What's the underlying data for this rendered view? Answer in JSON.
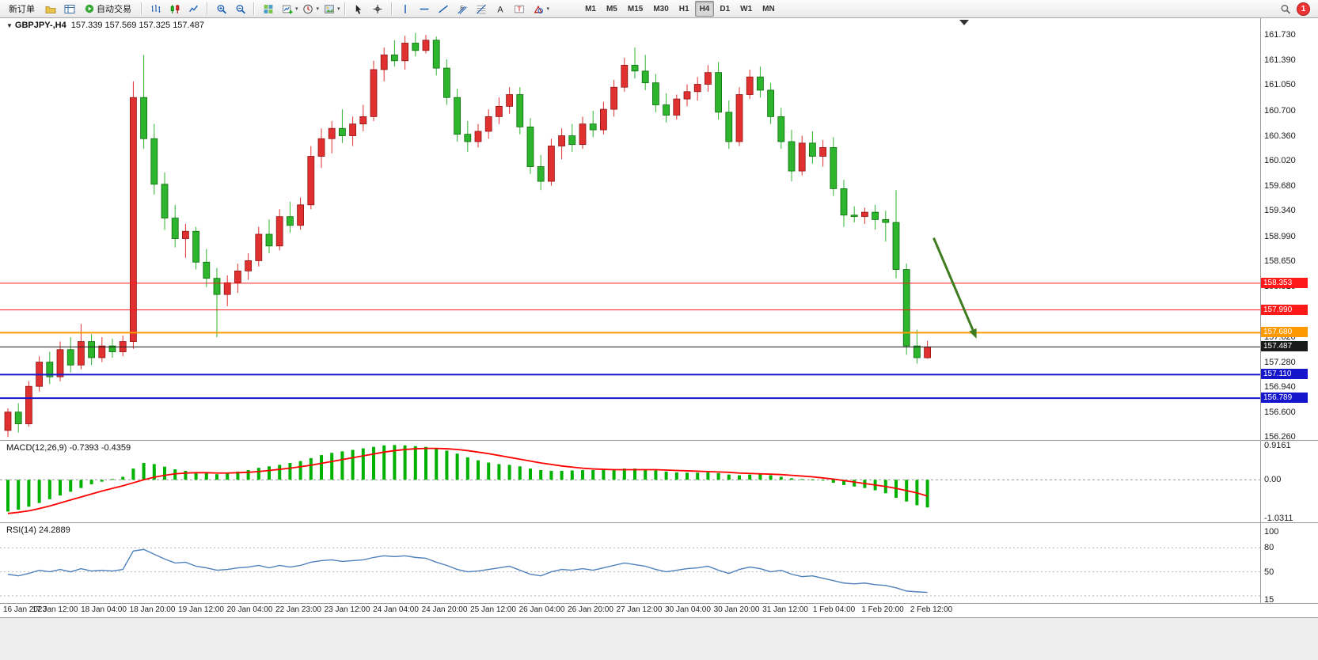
{
  "toolbar": {
    "new_order_label": "新订单",
    "autotrade_label": "自动交易",
    "badge_count": "1",
    "icons": [
      "profiles-icon",
      "market-watch-icon",
      "autotrade-play-icon",
      "bar-chart-icon",
      "candlestick-icon",
      "line-chart-icon",
      "zoom-in-icon",
      "zoom-out-icon",
      "tile-windows-icon",
      "new-chart-icon",
      "period-icon",
      "template-icon",
      "cursor-icon",
      "crosshair-icon",
      "vertical-line-icon",
      "horizontal-line-icon",
      "trendline-icon",
      "equidistant-channel-icon",
      "fibonacci-icon",
      "text-tool-icon",
      "label-tool-icon",
      "shapes-icon",
      "search-icon"
    ],
    "timeframes": [
      "M1",
      "M5",
      "M15",
      "M30",
      "H1",
      "H4",
      "D1",
      "W1",
      "MN"
    ],
    "active_timeframe": "H4"
  },
  "chart": {
    "symbol": "GBPJPY-,H4",
    "ohlc_text": "157.339 157.569 157.325 157.487"
  },
  "indicators": {
    "macd_label": "MACD(12,26,9)",
    "macd_values": "-0.7393 -0.4359",
    "rsi_label": "RSI(14)",
    "rsi_value": "24.2889"
  },
  "chart_data": [
    {
      "type": "candlestick",
      "symbol": "GBPJPY-",
      "timeframe": "H4",
      "current": {
        "open": 157.339,
        "high": 157.569,
        "low": 157.325,
        "close": 157.487
      },
      "ylim": [
        156.22,
        161.97
      ],
      "y_ticks": [
        "161.730",
        "161.390",
        "161.050",
        "160.700",
        "160.360",
        "160.020",
        "159.680",
        "159.340",
        "158.990",
        "158.650",
        "158.310",
        "157.970",
        "157.620",
        "157.280",
        "156.940",
        "156.600",
        "156.260"
      ],
      "x_labels": [
        "16 Jan 2023",
        "17 Jan 12:00",
        "18 Jan 04:00",
        "18 Jan 20:00",
        "19 Jan 12:00",
        "20 Jan 04:00",
        "22 Jan 23:00",
        "23 Jan 12:00",
        "24 Jan 04:00",
        "24 Jan 20:00",
        "25 Jan 12:00",
        "26 Jan 04:00",
        "26 Jan 20:00",
        "27 Jan 12:00",
        "30 Jan 04:00",
        "30 Jan 20:00",
        "31 Jan 12:00",
        "1 Feb 04:00",
        "1 Feb 20:00",
        "2 Feb 12:00"
      ],
      "colors": {
        "up": "#e03030",
        "down": "#2db52d",
        "up_border": "#8f1414",
        "down_border": "#0d6e0d",
        "bg": "#ffffff"
      },
      "candles": [
        [
          156.35,
          156.65,
          156.26,
          156.6
        ],
        [
          156.6,
          156.72,
          156.32,
          156.44
        ],
        [
          156.44,
          157.02,
          156.4,
          156.95
        ],
        [
          156.95,
          157.36,
          156.88,
          157.28
        ],
        [
          157.28,
          157.42,
          156.98,
          157.08
        ],
        [
          157.08,
          157.56,
          157.02,
          157.45
        ],
        [
          157.45,
          157.62,
          157.14,
          157.24
        ],
        [
          157.24,
          157.8,
          157.18,
          157.56
        ],
        [
          157.56,
          157.66,
          157.24,
          157.34
        ],
        [
          157.34,
          157.62,
          157.28,
          157.5
        ],
        [
          157.5,
          157.6,
          157.34,
          157.42
        ],
        [
          157.42,
          157.64,
          157.36,
          157.56
        ],
        [
          157.56,
          161.1,
          157.46,
          160.88
        ],
        [
          160.88,
          161.46,
          160.18,
          160.32
        ],
        [
          160.32,
          160.52,
          159.56,
          159.7
        ],
        [
          159.7,
          159.86,
          159.08,
          159.24
        ],
        [
          159.24,
          159.42,
          158.84,
          158.96
        ],
        [
          158.96,
          159.16,
          158.7,
          159.06
        ],
        [
          159.06,
          159.12,
          158.54,
          158.64
        ],
        [
          158.64,
          158.82,
          158.3,
          158.42
        ],
        [
          158.42,
          158.56,
          157.62,
          158.2
        ],
        [
          158.2,
          158.46,
          158.04,
          158.36
        ],
        [
          158.36,
          158.62,
          158.22,
          158.52
        ],
        [
          158.52,
          158.76,
          158.4,
          158.66
        ],
        [
          158.66,
          159.12,
          158.58,
          159.02
        ],
        [
          159.02,
          159.22,
          158.76,
          158.86
        ],
        [
          158.86,
          159.36,
          158.8,
          159.26
        ],
        [
          159.26,
          159.46,
          159.04,
          159.14
        ],
        [
          159.14,
          159.52,
          159.08,
          159.42
        ],
        [
          159.42,
          160.22,
          159.36,
          160.08
        ],
        [
          160.08,
          160.46,
          159.92,
          160.32
        ],
        [
          160.32,
          160.56,
          160.12,
          160.46
        ],
        [
          160.46,
          160.72,
          160.26,
          160.36
        ],
        [
          160.36,
          160.62,
          160.22,
          160.52
        ],
        [
          160.52,
          160.78,
          160.42,
          160.62
        ],
        [
          160.62,
          161.38,
          160.56,
          161.26
        ],
        [
          161.26,
          161.56,
          161.1,
          161.46
        ],
        [
          161.46,
          161.66,
          161.3,
          161.38
        ],
        [
          161.38,
          161.72,
          161.26,
          161.62
        ],
        [
          161.62,
          161.76,
          161.44,
          161.52
        ],
        [
          161.52,
          161.73,
          161.48,
          161.66
        ],
        [
          161.66,
          161.71,
          161.18,
          161.28
        ],
        [
          161.28,
          161.4,
          160.78,
          160.88
        ],
        [
          160.88,
          161.0,
          160.28,
          160.38
        ],
        [
          160.38,
          160.56,
          160.14,
          160.28
        ],
        [
          160.28,
          160.52,
          160.2,
          160.42
        ],
        [
          160.42,
          160.72,
          160.32,
          160.62
        ],
        [
          160.62,
          160.88,
          160.52,
          160.76
        ],
        [
          160.76,
          161.02,
          160.66,
          160.92
        ],
        [
          160.92,
          161.02,
          160.38,
          160.48
        ],
        [
          160.48,
          160.6,
          159.84,
          159.94
        ],
        [
          159.94,
          160.1,
          159.62,
          159.74
        ],
        [
          159.74,
          160.32,
          159.68,
          160.22
        ],
        [
          160.22,
          160.46,
          160.04,
          160.36
        ],
        [
          160.36,
          160.52,
          160.14,
          160.24
        ],
        [
          160.24,
          160.62,
          160.18,
          160.52
        ],
        [
          160.52,
          160.7,
          160.34,
          160.44
        ],
        [
          160.44,
          160.82,
          160.38,
          160.72
        ],
        [
          160.72,
          161.12,
          160.62,
          161.02
        ],
        [
          161.02,
          161.42,
          160.96,
          161.32
        ],
        [
          161.32,
          161.56,
          161.14,
          161.24
        ],
        [
          161.24,
          161.46,
          160.98,
          161.08
        ],
        [
          161.08,
          161.2,
          160.68,
          160.78
        ],
        [
          160.78,
          160.94,
          160.54,
          160.64
        ],
        [
          160.64,
          160.92,
          160.58,
          160.86
        ],
        [
          160.86,
          161.06,
          160.76,
          160.96
        ],
        [
          160.96,
          161.16,
          160.84,
          161.06
        ],
        [
          161.06,
          161.32,
          160.96,
          161.22
        ],
        [
          161.22,
          161.36,
          160.58,
          160.68
        ],
        [
          160.68,
          160.84,
          160.18,
          160.28
        ],
        [
          160.28,
          161.02,
          160.22,
          160.92
        ],
        [
          160.92,
          161.26,
          160.86,
          161.16
        ],
        [
          161.16,
          161.3,
          160.88,
          160.98
        ],
        [
          160.98,
          161.08,
          160.52,
          160.62
        ],
        [
          160.62,
          160.74,
          160.18,
          160.28
        ],
        [
          160.28,
          160.44,
          159.74,
          159.88
        ],
        [
          159.88,
          160.36,
          159.82,
          160.26
        ],
        [
          160.26,
          160.42,
          159.98,
          160.08
        ],
        [
          160.08,
          160.3,
          159.94,
          160.2
        ],
        [
          160.2,
          160.34,
          159.54,
          159.64
        ],
        [
          159.64,
          159.76,
          159.12,
          159.28
        ],
        [
          159.28,
          159.4,
          159.18,
          159.26
        ],
        [
          159.26,
          159.38,
          159.16,
          159.32
        ],
        [
          159.32,
          159.42,
          159.08,
          159.22
        ],
        [
          159.22,
          159.34,
          158.92,
          159.18
        ],
        [
          159.18,
          159.62,
          158.42,
          158.54
        ],
        [
          158.54,
          158.62,
          157.38,
          157.5
        ],
        [
          157.5,
          157.72,
          157.26,
          157.34
        ],
        [
          157.339,
          157.569,
          157.325,
          157.487
        ]
      ],
      "hlines": [
        {
          "price": 158.353,
          "label": "158.353",
          "color": "#ff1a1a",
          "width": 1
        },
        {
          "price": 157.99,
          "label": "157.990",
          "color": "#ff1a1a",
          "width": 1
        },
        {
          "price": 157.68,
          "label": "157.680",
          "color": "#ff9900",
          "width": 2
        },
        {
          "price": 157.11,
          "label": "157.110",
          "color": "#1515cc",
          "width": 2
        },
        {
          "price": 156.789,
          "label": "156.789",
          "color": "#1515cc",
          "width": 2
        }
      ],
      "current_price_line": {
        "price": 157.487,
        "label": "157.487",
        "color": "#1a1a1a"
      },
      "arrow": {
        "from_index": 88.6,
        "from_price": 158.97,
        "to_index": 92.7,
        "to_price": 157.6,
        "color": "#3e7c1f"
      }
    },
    {
      "type": "macd",
      "label": "MACD(12,26,9)",
      "macd_value": -0.7393,
      "signal_value": -0.4359,
      "ylim": [
        -1.0311,
        0.9161
      ],
      "y_ticks": [
        "0.9161",
        "0.00",
        "-1.0311"
      ],
      "colors": {
        "histogram": "#00b200",
        "signal": "#ff0000"
      },
      "histogram": [
        -0.85,
        -0.8,
        -0.72,
        -0.62,
        -0.52,
        -0.42,
        -0.32,
        -0.22,
        -0.12,
        -0.05,
        0.02,
        0.08,
        0.3,
        0.45,
        0.42,
        0.35,
        0.28,
        0.24,
        0.2,
        0.18,
        0.15,
        0.18,
        0.22,
        0.26,
        0.32,
        0.36,
        0.4,
        0.45,
        0.5,
        0.58,
        0.66,
        0.72,
        0.76,
        0.8,
        0.84,
        0.88,
        0.92,
        0.93,
        0.92,
        0.9,
        0.88,
        0.84,
        0.78,
        0.7,
        0.6,
        0.52,
        0.46,
        0.42,
        0.4,
        0.36,
        0.3,
        0.26,
        0.24,
        0.24,
        0.25,
        0.26,
        0.26,
        0.27,
        0.28,
        0.3,
        0.3,
        0.28,
        0.25,
        0.22,
        0.2,
        0.19,
        0.19,
        0.2,
        0.18,
        0.14,
        0.12,
        0.14,
        0.15,
        0.12,
        0.08,
        0.04,
        0.02,
        0.01,
        -0.02,
        -0.08,
        -0.14,
        -0.18,
        -0.22,
        -0.28,
        -0.36,
        -0.48,
        -0.58,
        -0.68,
        -0.7393
      ],
      "signal": [
        -0.9,
        -0.87,
        -0.83,
        -0.77,
        -0.7,
        -0.62,
        -0.54,
        -0.46,
        -0.38,
        -0.3,
        -0.23,
        -0.16,
        -0.08,
        0.0,
        0.07,
        0.12,
        0.16,
        0.18,
        0.19,
        0.19,
        0.18,
        0.18,
        0.19,
        0.2,
        0.22,
        0.25,
        0.28,
        0.31,
        0.35,
        0.39,
        0.44,
        0.49,
        0.54,
        0.59,
        0.64,
        0.69,
        0.74,
        0.78,
        0.81,
        0.83,
        0.84,
        0.84,
        0.83,
        0.81,
        0.78,
        0.74,
        0.7,
        0.65,
        0.6,
        0.55,
        0.5,
        0.45,
        0.41,
        0.37,
        0.34,
        0.31,
        0.29,
        0.28,
        0.27,
        0.27,
        0.27,
        0.27,
        0.27,
        0.26,
        0.25,
        0.24,
        0.23,
        0.22,
        0.21,
        0.2,
        0.18,
        0.17,
        0.16,
        0.15,
        0.14,
        0.12,
        0.1,
        0.08,
        0.05,
        0.02,
        -0.02,
        -0.06,
        -0.1,
        -0.14,
        -0.18,
        -0.23,
        -0.29,
        -0.35,
        -0.4359
      ]
    },
    {
      "type": "rsi",
      "label": "RSI(14)",
      "value": 24.2889,
      "ylim": [
        15,
        100
      ],
      "levels": [
        80,
        50,
        20
      ],
      "y_ticks": [
        "100",
        "80",
        "50",
        "15"
      ],
      "color": "#4f81bd",
      "values": [
        47,
        45,
        48,
        52,
        50,
        53,
        50,
        54,
        51,
        52,
        51,
        53,
        76,
        78,
        72,
        66,
        61,
        62,
        57,
        55,
        52,
        53,
        55,
        56,
        58,
        55,
        58,
        56,
        58,
        62,
        64,
        65,
        63,
        64,
        65,
        68,
        70,
        69,
        70,
        68,
        67,
        62,
        58,
        53,
        50,
        51,
        53,
        55,
        57,
        52,
        47,
        45,
        50,
        53,
        52,
        54,
        52,
        55,
        58,
        61,
        59,
        57,
        53,
        50,
        52,
        54,
        55,
        57,
        52,
        48,
        53,
        56,
        54,
        50,
        52,
        47,
        44,
        45,
        42,
        39,
        36,
        35,
        36,
        34,
        33,
        30,
        26,
        25,
        24.2889
      ]
    }
  ]
}
